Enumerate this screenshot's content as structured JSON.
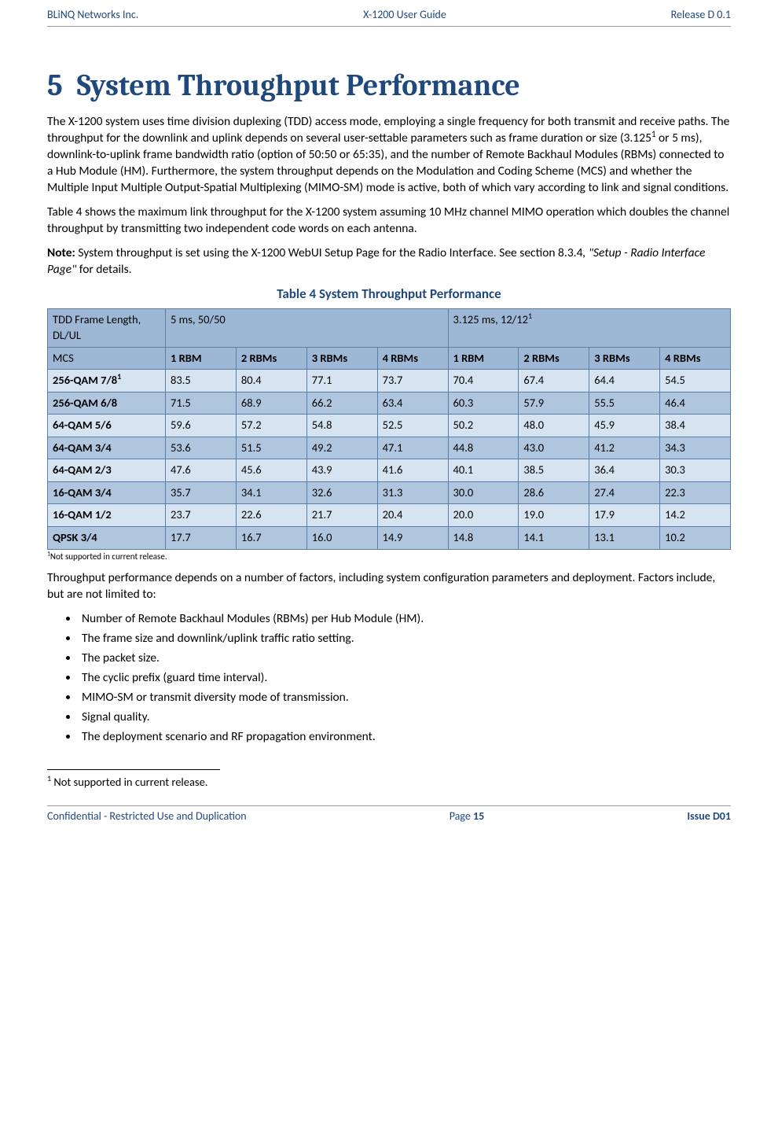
{
  "header": {
    "left": "BLiNQ Networks Inc.",
    "center": "X-1200 User Guide",
    "right": "Release D 0.1"
  },
  "title": {
    "number": "5",
    "text": "System Throughput Performance"
  },
  "p1a": "The X-1200 system uses time division duplexing (TDD) access mode, employing a single frequency for both transmit and receive paths. The throughput for the downlink and uplink depends on several user-settable parameters such as frame duration or size (3.125",
  "p1sup": "1",
  "p1b": " or 5 ms), downlink-to-uplink frame bandwidth ratio (option of 50:50 or 65:35), and the number of Remote Backhaul Modules (RBMs) connected to a Hub Module (HM). Furthermore, the system throughput depends on the Modulation and Coding Scheme (MCS) and whether the Multiple Input Multiple Output-Spatial Multiplexing (MIMO-SM) mode is active, both of which vary according to link and signal conditions.",
  "p2": "Table 4 shows the maximum link throughput for the X-1200 system assuming 10 MHz channel MIMO operation which doubles the channel throughput by transmitting two independent code words on each antenna.",
  "note_lead": "Note:",
  "note_a": " System throughput is set using the X-1200 WebUI Setup Page for the Radio Interface. See section 8.3.4",
  "note_italic": ", \"Setup - Radio Interface Page\"",
  "note_b": " for details.",
  "table_caption": "Table 4   System Throughput Performance",
  "table": {
    "hdr1": {
      "label": "TDD Frame Length, DL/UL",
      "g1": "5 ms, 50/50",
      "g2a": "3.125 ms, 12/12",
      "g2sup": "1"
    },
    "hdr2": {
      "label": "MCS",
      "cols": [
        "1 RBM",
        "2 RBMs",
        "3 RBMs",
        "4 RBMs",
        "1 RBM",
        "2 RBMs",
        "3 RBMs",
        "4 RBMs"
      ]
    },
    "rows": [
      {
        "mcs": "256-QAM 7/8",
        "sup": "1",
        "v": [
          "83.5",
          "80.4",
          "77.1",
          "73.7",
          "70.4",
          "67.4",
          "64.4",
          "54.5"
        ],
        "shade": "lt"
      },
      {
        "mcs": "256-QAM 6/8",
        "v": [
          "71.5",
          "68.9",
          "66.2",
          "63.4",
          "60.3",
          "57.9",
          "55.5",
          "46.4"
        ],
        "shade": "dk"
      },
      {
        "mcs": "64-QAM 5/6",
        "v": [
          "59.6",
          "57.2",
          "54.8",
          "52.5",
          "50.2",
          "48.0",
          "45.9",
          "38.4"
        ],
        "shade": "lt"
      },
      {
        "mcs": "64-QAM 3/4",
        "v": [
          "53.6",
          "51.5",
          "49.2",
          "47.1",
          "44.8",
          "43.0",
          "41.2",
          "34.3"
        ],
        "shade": "dk"
      },
      {
        "mcs": "64-QAM 2/3",
        "v": [
          "47.6",
          "45.6",
          "43.9",
          "41.6",
          "40.1",
          "38.5",
          "36.4",
          "30.3"
        ],
        "shade": "lt"
      },
      {
        "mcs": "16-QAM 3/4",
        "v": [
          "35.7",
          "34.1",
          "32.6",
          "31.3",
          "30.0",
          "28.6",
          "27.4",
          "22.3"
        ],
        "shade": "dk"
      },
      {
        "mcs": "16-QAM 1/2",
        "v": [
          "23.7",
          "22.6",
          "21.7",
          "20.4",
          "20.0",
          "19.0",
          "17.9",
          "14.2"
        ],
        "shade": "lt"
      },
      {
        "mcs": "QPSK 3/4",
        "v": [
          "17.7",
          "16.7",
          "16.0",
          "14.9",
          "14.8",
          "14.1",
          "13.1",
          "10.2"
        ],
        "shade": "dk"
      }
    ],
    "foot": "Not supported in current release."
  },
  "p3": "Throughput performance depends on a number of factors, including system configuration parameters and deployment. Factors include, but are not limited to:",
  "bullets": [
    "Number of Remote Backhaul Modules (RBMs) per Hub Module (HM).",
    "The frame size and downlink/uplink traffic ratio setting.",
    "The packet size.",
    "The cyclic prefix (guard time interval).",
    "MIMO-SM or transmit diversity mode of transmission.",
    "Signal quality.",
    "The deployment scenario and RF propagation environment."
  ],
  "pageFootnote": {
    "sup": "1",
    "text": " Not supported in current release."
  },
  "footer": {
    "left": "Confidential - Restricted Use and Duplication",
    "pagePre": "Page ",
    "pageNum": "15",
    "right": "Issue D01"
  }
}
